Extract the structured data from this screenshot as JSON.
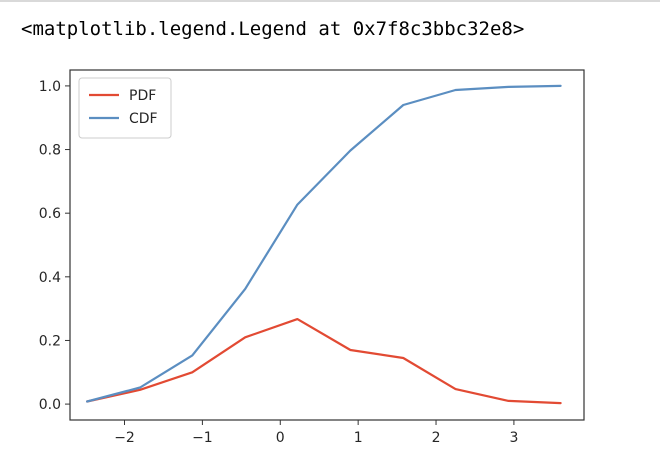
{
  "notebook_output": {
    "repr_text": "<matplotlib.legend.Legend at 0x7f8c3bbc32e8>"
  },
  "chart_data": {
    "type": "line",
    "title": "",
    "xlabel": "",
    "ylabel": "",
    "xlim": [
      -2.7,
      3.9
    ],
    "ylim": [
      -0.05,
      1.05
    ],
    "x_ticks": [
      -2,
      -1,
      0,
      1,
      2,
      3
    ],
    "x_tick_labels": [
      "−2",
      "−1",
      "0",
      "1",
      "2",
      "3"
    ],
    "y_ticks": [
      0.0,
      0.2,
      0.4,
      0.6,
      0.8,
      1.0
    ],
    "y_tick_labels": [
      "0.0",
      "0.2",
      "0.4",
      "0.6",
      "0.8",
      "1.0"
    ],
    "grid": false,
    "legend_position": "upper-left",
    "x": [
      -2.48,
      -1.8,
      -1.13,
      -0.45,
      0.22,
      0.9,
      1.58,
      2.25,
      2.93,
      3.6
    ],
    "series": [
      {
        "name": "PDF",
        "color": "#e24a33",
        "values": [
          0.008,
          0.045,
          0.1,
          0.21,
          0.267,
          0.17,
          0.145,
          0.047,
          0.01,
          0.003
        ]
      },
      {
        "name": "CDF",
        "color": "#5b8ec1",
        "values": [
          0.008,
          0.052,
          0.153,
          0.362,
          0.627,
          0.797,
          0.94,
          0.987,
          0.997,
          1.0
        ]
      }
    ]
  }
}
